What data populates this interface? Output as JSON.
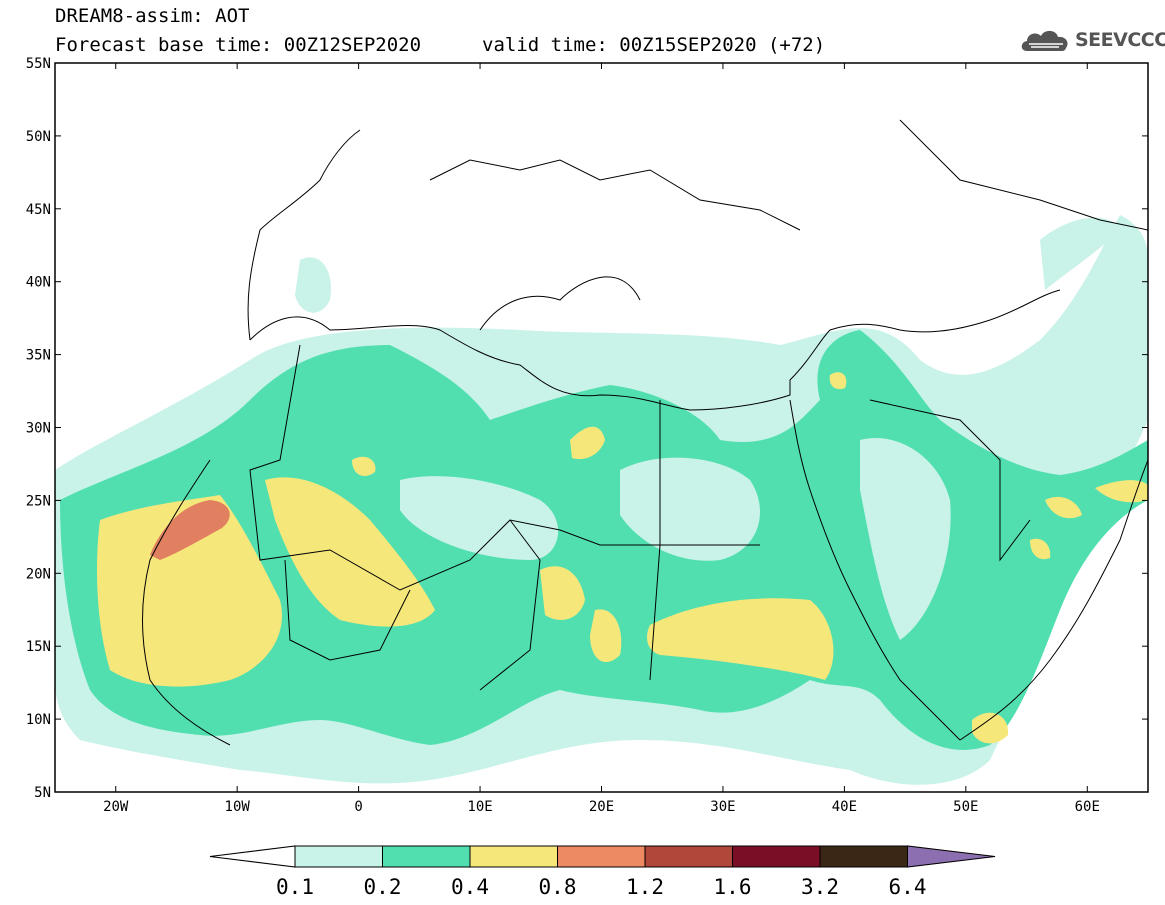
{
  "header": {
    "line1": "DREAM8-assim: AOT",
    "line2": "Forecast base time: 00Z12SEP2020",
    "line2b": "valid time: 00Z15SEP2020 (+72)"
  },
  "logo": {
    "text": "SEEVCCC",
    "icon": "cloud-icon"
  },
  "map": {
    "lat_labels": [
      "55N",
      "50N",
      "45N",
      "40N",
      "35N",
      "30N",
      "25N",
      "20N",
      "15N",
      "10N",
      "5N"
    ],
    "lon_labels": [
      "20W",
      "10W",
      "0",
      "10E",
      "20E",
      "30E",
      "40E",
      "50E",
      "60E"
    ]
  },
  "legend": {
    "labels": [
      "0.1",
      "0.2",
      "0.4",
      "0.8",
      "1.2",
      "1.6",
      "3.2",
      "6.4"
    ],
    "colors": [
      "#ffffff",
      "#c9f2e9",
      "#52dfb0",
      "#f6e77b",
      "#ee8a63",
      "#b1463a",
      "#7a0e26",
      "#3b2716",
      "#8c6fb0"
    ]
  },
  "colors": {
    "light": "#c9f2e9",
    "green": "#52dfb0",
    "yellow": "#f6e77b",
    "orange": "#e08060",
    "background": "#ffffff"
  }
}
